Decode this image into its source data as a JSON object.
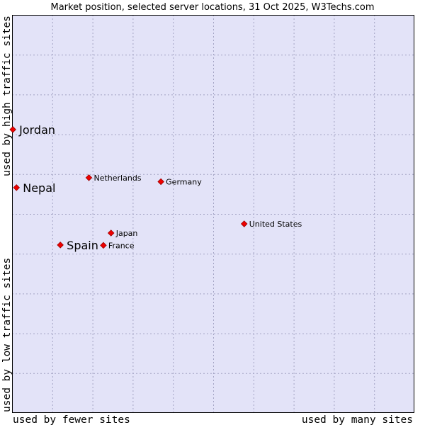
{
  "colors": {
    "plot_bg": "#e3e3f8",
    "grid": "#a4a4c4",
    "marker": "#ee0000",
    "marker_stroke": "#990000"
  },
  "chart_data": {
    "type": "scatter",
    "title": "Market position, selected server locations, 31 Oct 2025, W3Techs.com",
    "xlabel_left": "used by fewer sites",
    "xlabel_right": "used by many sites",
    "ylabel_bottom": "used by low traffic sites",
    "ylabel_top": "used by high traffic sites",
    "xlim": [
      0,
      100
    ],
    "ylim": [
      0,
      100
    ],
    "grid": true,
    "points": [
      {
        "name": "Jordan",
        "x": 0.2,
        "y": 71.2,
        "emphasis": true
      },
      {
        "name": "Nepal",
        "x": 1.1,
        "y": 56.6,
        "emphasis": true
      },
      {
        "name": "Spain",
        "x": 12.0,
        "y": 42.2,
        "emphasis": true
      },
      {
        "name": "Netherlands",
        "x": 19.1,
        "y": 59.1,
        "emphasis": false
      },
      {
        "name": "Germany",
        "x": 37.0,
        "y": 58.1,
        "emphasis": false
      },
      {
        "name": "Japan",
        "x": 24.6,
        "y": 45.2,
        "emphasis": false
      },
      {
        "name": "France",
        "x": 22.7,
        "y": 42.1,
        "emphasis": false
      },
      {
        "name": "United States",
        "x": 57.7,
        "y": 47.5,
        "emphasis": false
      }
    ]
  }
}
